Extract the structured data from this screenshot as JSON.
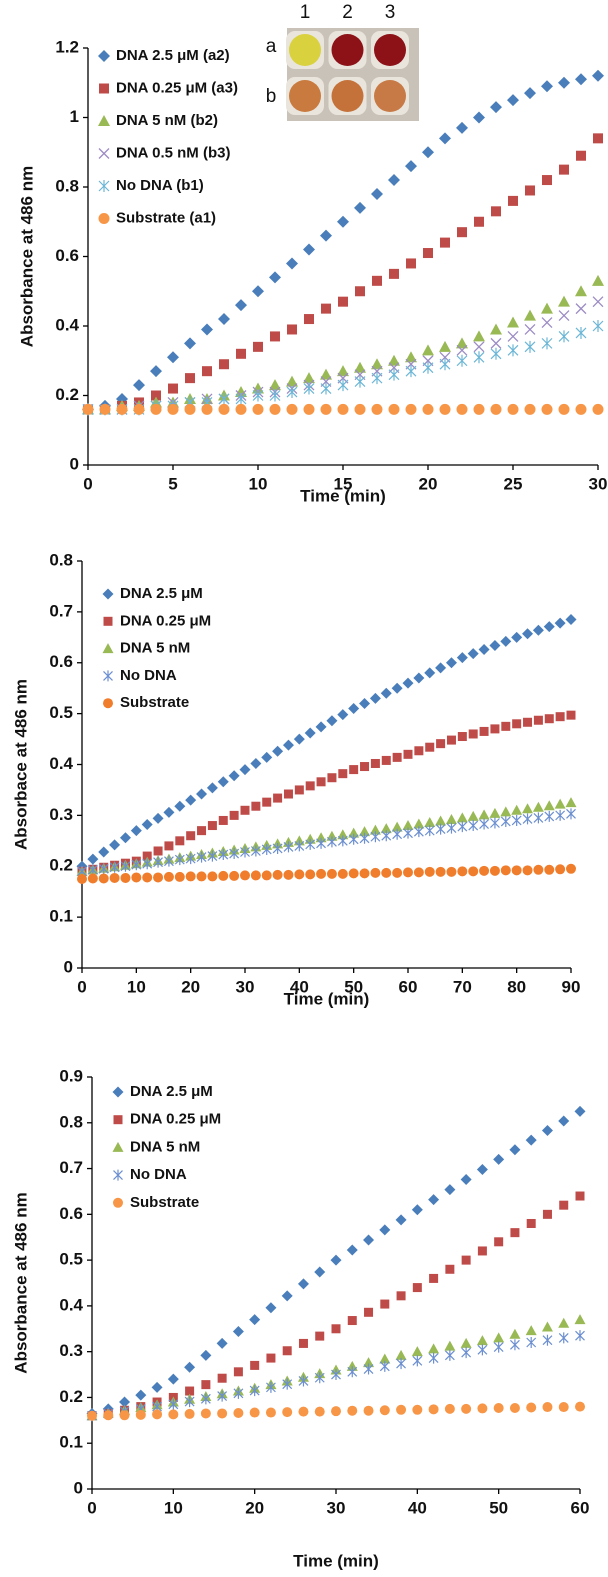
{
  "chart_data": [
    {
      "type": "scatter",
      "x_label": "Time (min)",
      "y_label": "Absorbance at 486 nm",
      "x": [
        0,
        1,
        2,
        3,
        4,
        5,
        6,
        7,
        8,
        9,
        10,
        11,
        12,
        13,
        14,
        15,
        16,
        17,
        18,
        19,
        20,
        21,
        22,
        23,
        24,
        25,
        26,
        27,
        28,
        29,
        30
      ],
      "series": [
        {
          "name": "DNA 2.5 μM (a2)",
          "color": "#4a7ebb",
          "marker": "diamond",
          "values": [
            0.16,
            0.17,
            0.19,
            0.23,
            0.27,
            0.31,
            0.35,
            0.39,
            0.42,
            0.46,
            0.5,
            0.54,
            0.58,
            0.62,
            0.66,
            0.7,
            0.74,
            0.78,
            0.82,
            0.86,
            0.9,
            0.94,
            0.97,
            1.0,
            1.03,
            1.05,
            1.07,
            1.09,
            1.1,
            1.11,
            1.12
          ]
        },
        {
          "name": "DNA 0.25 μM (a3)",
          "color": "#be4b48",
          "marker": "square",
          "values": [
            0.16,
            0.16,
            0.17,
            0.18,
            0.2,
            0.22,
            0.25,
            0.27,
            0.29,
            0.32,
            0.34,
            0.37,
            0.39,
            0.42,
            0.45,
            0.47,
            0.5,
            0.53,
            0.55,
            0.58,
            0.61,
            0.64,
            0.67,
            0.7,
            0.73,
            0.76,
            0.79,
            0.82,
            0.85,
            0.89,
            0.94
          ]
        },
        {
          "name": "DNA 5 nM (b2)",
          "color": "#98b954",
          "marker": "triangle",
          "values": [
            0.16,
            0.16,
            0.17,
            0.17,
            0.18,
            0.18,
            0.19,
            0.19,
            0.2,
            0.21,
            0.22,
            0.23,
            0.24,
            0.25,
            0.26,
            0.27,
            0.28,
            0.29,
            0.3,
            0.31,
            0.33,
            0.34,
            0.35,
            0.37,
            0.39,
            0.41,
            0.43,
            0.45,
            0.47,
            0.5,
            0.53
          ]
        },
        {
          "name": "DNA 0.5 nM (b3)",
          "color": "#9c8cc4",
          "marker": "x",
          "values": [
            0.16,
            0.16,
            0.16,
            0.17,
            0.17,
            0.18,
            0.18,
            0.19,
            0.19,
            0.2,
            0.21,
            0.21,
            0.22,
            0.23,
            0.24,
            0.25,
            0.26,
            0.27,
            0.28,
            0.29,
            0.3,
            0.31,
            0.33,
            0.34,
            0.35,
            0.37,
            0.39,
            0.41,
            0.43,
            0.45,
            0.47
          ]
        },
        {
          "name": "No DNA (b1)",
          "color": "#6cb6d6",
          "marker": "star",
          "values": [
            0.16,
            0.16,
            0.16,
            0.16,
            0.17,
            0.17,
            0.18,
            0.18,
            0.19,
            0.19,
            0.2,
            0.2,
            0.21,
            0.22,
            0.22,
            0.23,
            0.24,
            0.25,
            0.26,
            0.27,
            0.28,
            0.29,
            0.3,
            0.31,
            0.32,
            0.33,
            0.34,
            0.35,
            0.37,
            0.38,
            0.4
          ]
        },
        {
          "name": "Substrate (a1)",
          "color": "#f79646",
          "marker": "circle",
          "values": [
            0.16,
            0.16,
            0.16,
            0.16,
            0.16,
            0.16,
            0.16,
            0.16,
            0.16,
            0.16,
            0.16,
            0.16,
            0.16,
            0.16,
            0.16,
            0.16,
            0.16,
            0.16,
            0.16,
            0.16,
            0.16,
            0.16,
            0.16,
            0.16,
            0.16,
            0.16,
            0.16,
            0.16,
            0.16,
            0.16,
            0.16
          ]
        }
      ],
      "xlim": [
        0,
        30
      ],
      "ylim": [
        0,
        1.2
      ],
      "xticks": [
        0,
        5,
        10,
        15,
        20,
        25,
        30
      ],
      "yticks": [
        0,
        0.2,
        0.4,
        0.6,
        0.8,
        1,
        1.2
      ],
      "legend": "upper left",
      "grid": false,
      "inset": {
        "column_labels": [
          "1",
          "2",
          "3"
        ],
        "row_labels": [
          "a",
          "b"
        ]
      }
    },
    {
      "type": "scatter",
      "x_label": "Time (min)",
      "y_label": "Absorbace at 486 nm",
      "x": [
        0,
        2,
        4,
        6,
        8,
        10,
        12,
        14,
        16,
        18,
        20,
        22,
        24,
        26,
        28,
        30,
        32,
        34,
        36,
        38,
        40,
        42,
        44,
        46,
        48,
        50,
        52,
        54,
        56,
        58,
        60,
        62,
        64,
        66,
        68,
        70,
        72,
        74,
        76,
        78,
        80,
        82,
        84,
        86,
        88,
        90
      ],
      "series": [
        {
          "name": "DNA 2.5 μM",
          "color": "#4a7ebb",
          "marker": "diamond",
          "values": [
            0.2,
            0.214,
            0.228,
            0.242,
            0.256,
            0.27,
            0.282,
            0.294,
            0.306,
            0.318,
            0.33,
            0.342,
            0.354,
            0.366,
            0.378,
            0.39,
            0.402,
            0.414,
            0.426,
            0.438,
            0.45,
            0.462,
            0.474,
            0.486,
            0.498,
            0.51,
            0.52,
            0.53,
            0.54,
            0.55,
            0.56,
            0.57,
            0.58,
            0.59,
            0.6,
            0.61,
            0.618,
            0.626,
            0.634,
            0.642,
            0.65,
            0.657,
            0.664,
            0.671,
            0.678,
            0.685
          ]
        },
        {
          "name": "DNA 0.25 μM",
          "color": "#be4b48",
          "marker": "square",
          "values": [
            0.19,
            0.194,
            0.198,
            0.202,
            0.206,
            0.21,
            0.22,
            0.23,
            0.24,
            0.25,
            0.26,
            0.27,
            0.28,
            0.29,
            0.3,
            0.31,
            0.318,
            0.326,
            0.334,
            0.342,
            0.35,
            0.358,
            0.366,
            0.374,
            0.382,
            0.39,
            0.396,
            0.402,
            0.408,
            0.414,
            0.42,
            0.427,
            0.434,
            0.441,
            0.448,
            0.455,
            0.46,
            0.465,
            0.47,
            0.475,
            0.48,
            0.483,
            0.487,
            0.49,
            0.494,
            0.497
          ]
        },
        {
          "name": "DNA 5 nM",
          "color": "#98b954",
          "marker": "triangle",
          "values": [
            0.19,
            0.193,
            0.196,
            0.199,
            0.202,
            0.205,
            0.208,
            0.211,
            0.214,
            0.217,
            0.22,
            0.223,
            0.226,
            0.229,
            0.232,
            0.235,
            0.238,
            0.241,
            0.244,
            0.247,
            0.25,
            0.253,
            0.256,
            0.259,
            0.262,
            0.265,
            0.268,
            0.271,
            0.274,
            0.277,
            0.28,
            0.283,
            0.286,
            0.289,
            0.292,
            0.295,
            0.298,
            0.301,
            0.304,
            0.307,
            0.31,
            0.313,
            0.316,
            0.319,
            0.322,
            0.325
          ]
        },
        {
          "name": "No DNA",
          "color": "#6c8fd0",
          "marker": "star",
          "values": [
            0.19,
            0.193,
            0.195,
            0.198,
            0.2,
            0.203,
            0.205,
            0.208,
            0.21,
            0.213,
            0.215,
            0.218,
            0.22,
            0.223,
            0.225,
            0.228,
            0.23,
            0.233,
            0.235,
            0.238,
            0.24,
            0.243,
            0.245,
            0.248,
            0.25,
            0.253,
            0.255,
            0.258,
            0.26,
            0.263,
            0.265,
            0.268,
            0.27,
            0.273,
            0.275,
            0.278,
            0.28,
            0.283,
            0.285,
            0.288,
            0.29,
            0.293,
            0.295,
            0.298,
            0.3,
            0.303
          ]
        },
        {
          "name": "Substrate",
          "color": "#f07d2c",
          "marker": "circle",
          "values": [
            0.175,
            0.176,
            0.176,
            0.177,
            0.177,
            0.178,
            0.178,
            0.178,
            0.179,
            0.179,
            0.18,
            0.18,
            0.18,
            0.181,
            0.181,
            0.182,
            0.182,
            0.182,
            0.183,
            0.183,
            0.184,
            0.184,
            0.185,
            0.185,
            0.185,
            0.186,
            0.186,
            0.187,
            0.187,
            0.187,
            0.188,
            0.188,
            0.189,
            0.189,
            0.189,
            0.19,
            0.19,
            0.191,
            0.191,
            0.192,
            0.192,
            0.192,
            0.193,
            0.193,
            0.194,
            0.195
          ]
        }
      ],
      "xlim": [
        0,
        90
      ],
      "ylim": [
        0,
        0.8
      ],
      "xticks": [
        0,
        10,
        20,
        30,
        40,
        50,
        60,
        70,
        80,
        90
      ],
      "yticks": [
        0,
        0.1,
        0.2,
        0.3,
        0.4,
        0.5,
        0.6,
        0.7,
        0.8
      ],
      "legend": "upper left",
      "grid": false
    },
    {
      "type": "scatter",
      "x_label": "Time (min)",
      "y_label": "Absorbance at 486 nm",
      "x": [
        0,
        2,
        4,
        6,
        8,
        10,
        12,
        14,
        16,
        18,
        20,
        22,
        24,
        26,
        28,
        30,
        32,
        34,
        36,
        38,
        40,
        42,
        44,
        46,
        48,
        50,
        52,
        54,
        56,
        58,
        60
      ],
      "series": [
        {
          "name": "DNA 2.5 μM",
          "color": "#4a7ebb",
          "marker": "diamond",
          "values": [
            0.165,
            0.175,
            0.19,
            0.205,
            0.222,
            0.24,
            0.266,
            0.292,
            0.318,
            0.344,
            0.37,
            0.396,
            0.422,
            0.448,
            0.474,
            0.5,
            0.522,
            0.544,
            0.566,
            0.588,
            0.61,
            0.632,
            0.654,
            0.676,
            0.698,
            0.72,
            0.741,
            0.762,
            0.783,
            0.804,
            0.825
          ]
        },
        {
          "name": "DNA 0.25 μM",
          "color": "#be4b48",
          "marker": "square",
          "values": [
            0.16,
            0.165,
            0.172,
            0.18,
            0.19,
            0.2,
            0.214,
            0.228,
            0.242,
            0.256,
            0.27,
            0.286,
            0.302,
            0.318,
            0.334,
            0.35,
            0.368,
            0.386,
            0.404,
            0.422,
            0.44,
            0.46,
            0.48,
            0.5,
            0.52,
            0.54,
            0.56,
            0.58,
            0.6,
            0.62,
            0.64
          ]
        },
        {
          "name": "DNA 5 nM",
          "color": "#98b954",
          "marker": "triangle",
          "values": [
            0.16,
            0.166,
            0.172,
            0.178,
            0.184,
            0.19,
            0.196,
            0.202,
            0.208,
            0.214,
            0.22,
            0.228,
            0.236,
            0.244,
            0.252,
            0.26,
            0.268,
            0.276,
            0.284,
            0.292,
            0.3,
            0.306,
            0.312,
            0.318,
            0.324,
            0.33,
            0.338,
            0.346,
            0.354,
            0.362,
            0.37
          ]
        },
        {
          "name": "No DNA",
          "color": "#6c8fd0",
          "marker": "star",
          "values": [
            0.16,
            0.165,
            0.17,
            0.175,
            0.18,
            0.185,
            0.191,
            0.197,
            0.203,
            0.209,
            0.215,
            0.222,
            0.229,
            0.236,
            0.243,
            0.25,
            0.256,
            0.262,
            0.268,
            0.274,
            0.28,
            0.286,
            0.292,
            0.298,
            0.304,
            0.31,
            0.315,
            0.32,
            0.325,
            0.33,
            0.335
          ]
        },
        {
          "name": "Substrate",
          "color": "#f79646",
          "marker": "circle",
          "values": [
            0.16,
            0.161,
            0.161,
            0.162,
            0.163,
            0.163,
            0.164,
            0.165,
            0.165,
            0.166,
            0.167,
            0.167,
            0.168,
            0.169,
            0.169,
            0.17,
            0.171,
            0.171,
            0.172,
            0.173,
            0.173,
            0.174,
            0.175,
            0.175,
            0.176,
            0.177,
            0.177,
            0.178,
            0.179,
            0.179,
            0.18
          ]
        }
      ],
      "xlim": [
        0,
        60
      ],
      "ylim": [
        0,
        0.9
      ],
      "xticks": [
        0,
        10,
        20,
        30,
        40,
        50,
        60
      ],
      "yticks": [
        0,
        0.1,
        0.2,
        0.3,
        0.4,
        0.5,
        0.6,
        0.7,
        0.8,
        0.9
      ],
      "legend": "upper left",
      "grid": false
    }
  ]
}
